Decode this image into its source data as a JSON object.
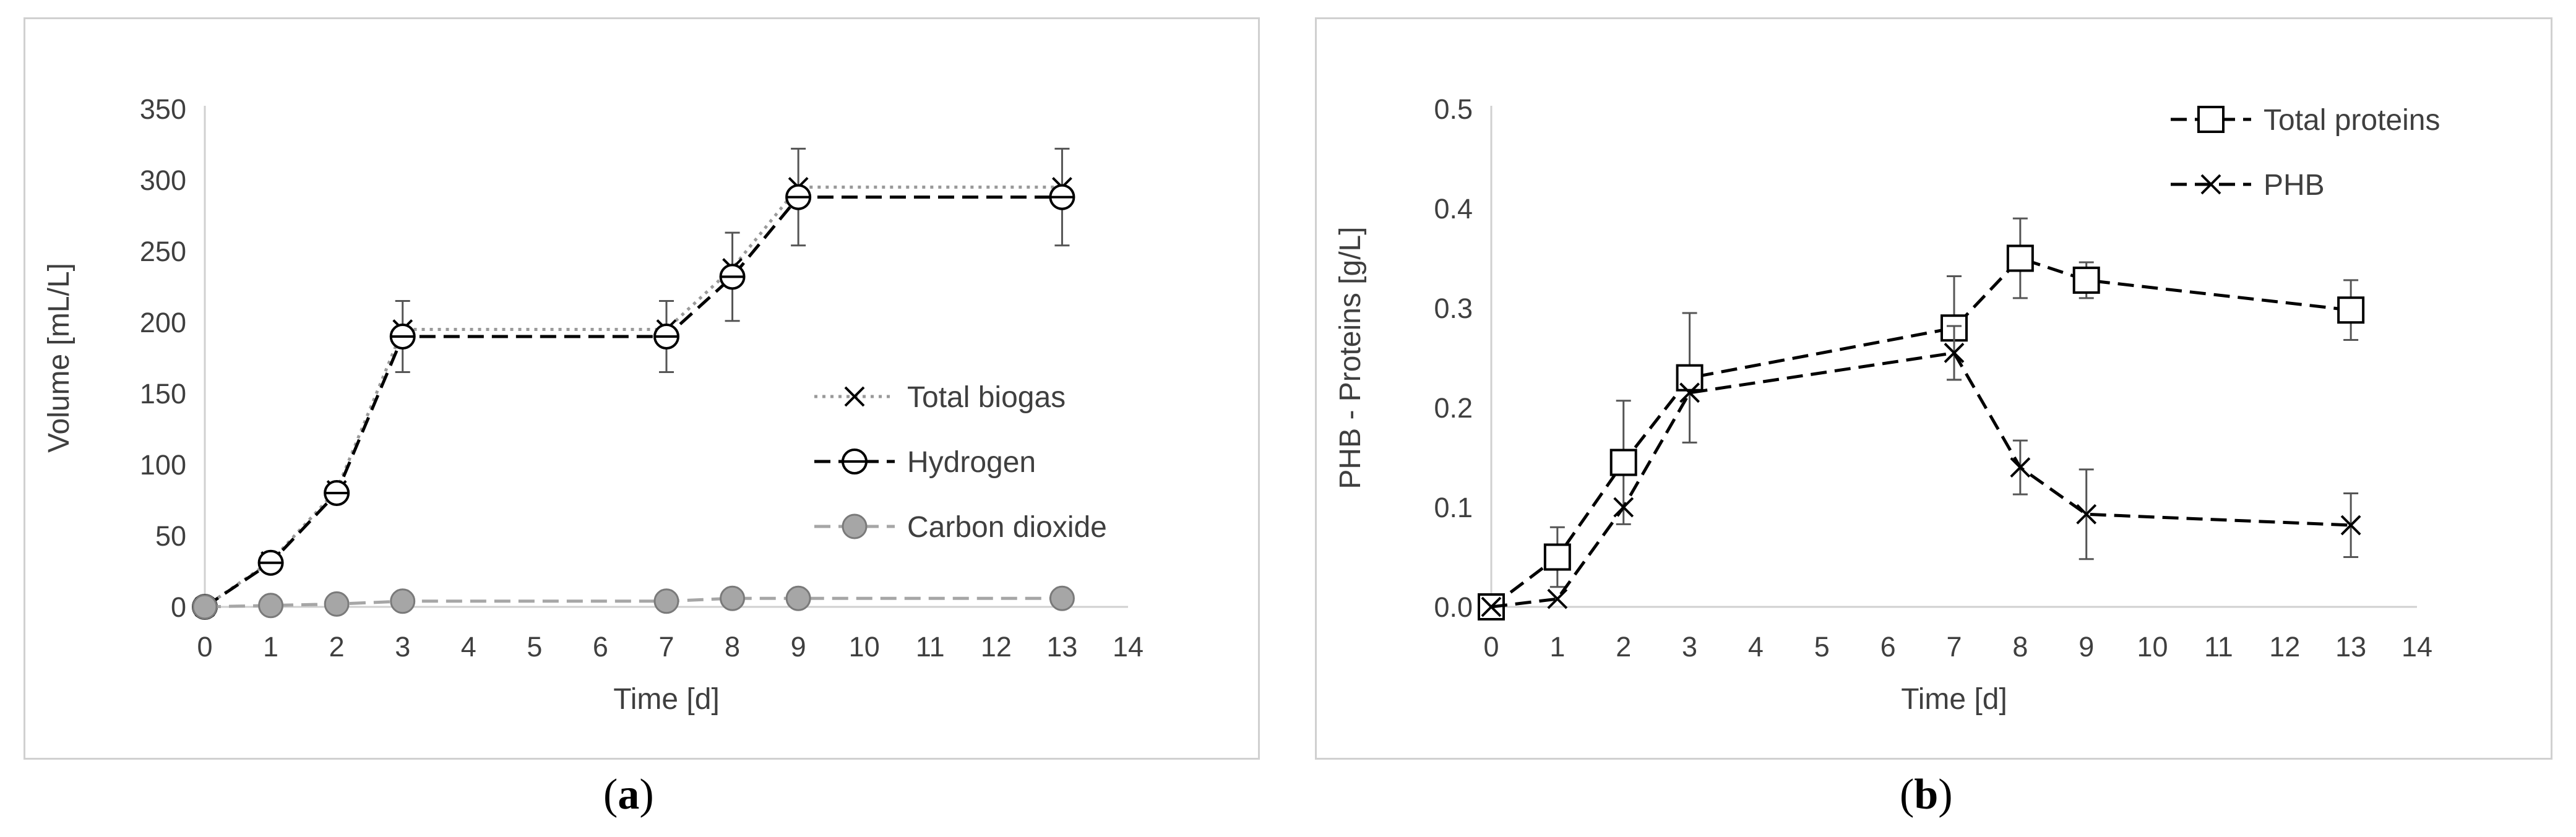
{
  "captions": {
    "a": "a",
    "b": "b"
  },
  "chart_data": [
    {
      "type": "line",
      "title": "",
      "xlabel": "Time [d]",
      "ylabel": "Volume [mL/L]",
      "xlim": [
        0,
        14
      ],
      "ylim": [
        0,
        350
      ],
      "xticks": [
        0,
        1,
        2,
        3,
        4,
        5,
        6,
        7,
        8,
        9,
        10,
        11,
        12,
        13,
        14
      ],
      "yticks": [
        0,
        50,
        100,
        150,
        200,
        250,
        300,
        350
      ],
      "grid": false,
      "legend_position": "right",
      "series": [
        {
          "name": "Total biogas",
          "marker": "x",
          "line_style": "dotted",
          "color": "#9a9a9a",
          "x": [
            0,
            1,
            2,
            3,
            7,
            8,
            9,
            13
          ],
          "y": [
            0,
            32,
            82,
            195,
            195,
            238,
            295,
            295
          ],
          "err": [
            0,
            0,
            0,
            0,
            0,
            0,
            0,
            0
          ]
        },
        {
          "name": "Hydrogen",
          "marker": "circle-bar",
          "line_style": "dashed",
          "color": "#000000",
          "x": [
            0,
            1,
            2,
            3,
            7,
            8,
            9,
            13
          ],
          "y": [
            0,
            31,
            80,
            190,
            190,
            232,
            288,
            288
          ],
          "err": [
            0,
            0,
            0,
            25,
            25,
            31,
            34,
            34
          ]
        },
        {
          "name": "Carbon dioxide",
          "marker": "circle-filled",
          "line_style": "dashed",
          "color": "#a6a6a6",
          "x": [
            0,
            1,
            2,
            3,
            7,
            8,
            9,
            13
          ],
          "y": [
            0,
            1,
            2,
            4,
            4,
            6,
            6,
            6
          ],
          "err": [
            0,
            0,
            0,
            0,
            0,
            0,
            0,
            0
          ]
        }
      ]
    },
    {
      "type": "line",
      "title": "",
      "xlabel": "Time [d]",
      "ylabel": "PHB - Proteins [g/L]",
      "xlim": [
        0,
        14
      ],
      "ylim": [
        0,
        0.5
      ],
      "xticks": [
        0,
        1,
        2,
        3,
        4,
        5,
        6,
        7,
        8,
        9,
        10,
        11,
        12,
        13,
        14
      ],
      "yticks": [
        "0.0",
        "0.1",
        "0.2",
        "0.3",
        "0.4",
        "0.5"
      ],
      "grid": false,
      "legend_position": "top-right",
      "series": [
        {
          "name": "Total proteins",
          "marker": "square",
          "line_style": "dashed",
          "color": "#000000",
          "x": [
            0,
            1,
            2,
            3,
            7,
            8,
            9,
            13
          ],
          "y": [
            0,
            0.05,
            0.145,
            0.23,
            0.28,
            0.35,
            0.328,
            0.298
          ],
          "err": [
            0,
            0.03,
            0.062,
            0.065,
            0.052,
            0.04,
            0.018,
            0.03
          ]
        },
        {
          "name": "PHB",
          "marker": "x",
          "line_style": "dashed",
          "color": "#000000",
          "x": [
            0,
            1,
            2,
            3,
            7,
            8,
            9,
            13
          ],
          "y": [
            0,
            0.008,
            0.1,
            0.215,
            0.255,
            0.14,
            0.093,
            0.082
          ],
          "err": [
            0,
            0,
            0,
            0,
            0.027,
            0.027,
            0.045,
            0.032
          ]
        }
      ]
    }
  ]
}
